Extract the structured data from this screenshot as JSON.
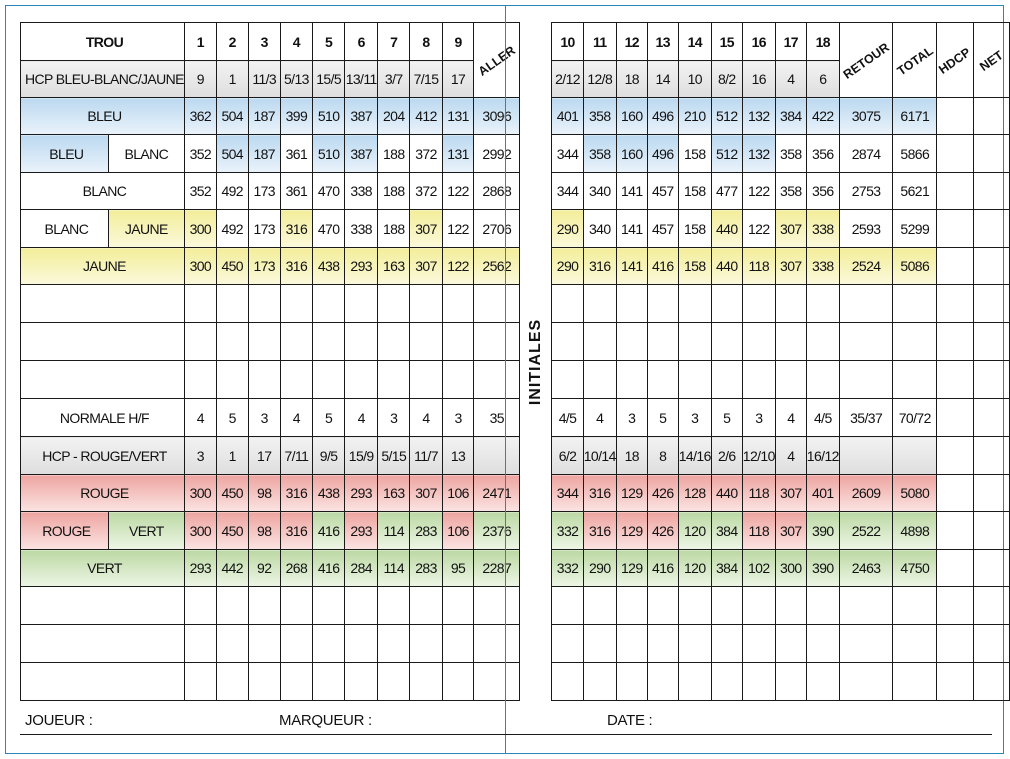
{
  "columns": {
    "trou_label": "TROU",
    "holes_front": [
      "1",
      "2",
      "3",
      "4",
      "5",
      "6",
      "7",
      "8",
      "9"
    ],
    "aller": "ALLER",
    "initiales": "INITIALES",
    "holes_back": [
      "10",
      "11",
      "12",
      "13",
      "14",
      "15",
      "16",
      "17",
      "18"
    ],
    "retour": "RETOUR",
    "total": "TOTAL",
    "hdcp": "HDCP",
    "net": "NET"
  },
  "rows": [
    {
      "label": "HCP BLEU-BLANC/JAUNE",
      "type": "hcp",
      "front": [
        "9",
        "1",
        "11/3",
        "5/13",
        "15/5",
        "13/11",
        "3/7",
        "7/15",
        "17"
      ],
      "aller": "",
      "back": [
        "2/12",
        "12/8",
        "18",
        "14",
        "10",
        "8/2",
        "16",
        "4",
        "6"
      ],
      "retour": "",
      "total": ""
    },
    {
      "label": "BLEU",
      "type": "tee",
      "label_color": "blue",
      "front": [
        "362",
        "504",
        "187",
        "399",
        "510",
        "387",
        "204",
        "412",
        "131"
      ],
      "front_colors": [
        "blue",
        "blue",
        "blue",
        "blue",
        "blue",
        "blue",
        "blue",
        "blue",
        "blue"
      ],
      "aller": "3096",
      "aller_color": "blue",
      "back": [
        "401",
        "358",
        "160",
        "496",
        "210",
        "512",
        "132",
        "384",
        "422"
      ],
      "back_colors": [
        "blue",
        "blue",
        "blue",
        "blue",
        "blue",
        "blue",
        "blue",
        "blue",
        "blue"
      ],
      "retour": "3075",
      "retour_color": "blue",
      "total": "6171",
      "total_color": "blue"
    },
    {
      "label": "BLEU",
      "sublabel": "BLANC",
      "type": "combo",
      "label_color": "blue",
      "sublabel_color": "",
      "front": [
        "352",
        "504",
        "187",
        "361",
        "510",
        "387",
        "188",
        "372",
        "131"
      ],
      "front_colors": [
        "",
        "blue",
        "blue",
        "",
        "blue",
        "blue",
        "",
        "",
        "blue"
      ],
      "aller": "2992",
      "aller_color": "",
      "back": [
        "344",
        "358",
        "160",
        "496",
        "158",
        "512",
        "132",
        "358",
        "356"
      ],
      "back_colors": [
        "",
        "blue",
        "blue",
        "blue",
        "",
        "blue",
        "blue",
        "",
        ""
      ],
      "retour": "2874",
      "retour_color": "",
      "total": "5866",
      "total_color": ""
    },
    {
      "label": "BLANC",
      "type": "tee",
      "label_color": "",
      "front": [
        "352",
        "492",
        "173",
        "361",
        "470",
        "338",
        "188",
        "372",
        "122"
      ],
      "front_colors": [
        "",
        "",
        "",
        "",
        "",
        "",
        "",
        "",
        ""
      ],
      "aller": "2868",
      "aller_color": "",
      "back": [
        "344",
        "340",
        "141",
        "457",
        "158",
        "477",
        "122",
        "358",
        "356"
      ],
      "back_colors": [
        "",
        "",
        "",
        "",
        "",
        "",
        "",
        "",
        ""
      ],
      "retour": "2753",
      "retour_color": "",
      "total": "5621",
      "total_color": ""
    },
    {
      "label": "BLANC",
      "sublabel": "JAUNE",
      "type": "combo",
      "label_color": "",
      "sublabel_color": "yellow",
      "front": [
        "300",
        "492",
        "173",
        "316",
        "470",
        "338",
        "188",
        "307",
        "122"
      ],
      "front_colors": [
        "yellow",
        "",
        "",
        "yellow",
        "",
        "",
        "",
        "yellow",
        ""
      ],
      "aller": "2706",
      "aller_color": "",
      "back": [
        "290",
        "340",
        "141",
        "457",
        "158",
        "440",
        "122",
        "307",
        "338"
      ],
      "back_colors": [
        "yellow",
        "",
        "",
        "",
        "",
        "yellow",
        "",
        "yellow",
        "yellow"
      ],
      "retour": "2593",
      "retour_color": "",
      "total": "5299",
      "total_color": ""
    },
    {
      "label": "JAUNE",
      "type": "tee",
      "label_color": "yellow",
      "front": [
        "300",
        "450",
        "173",
        "316",
        "438",
        "293",
        "163",
        "307",
        "122"
      ],
      "front_colors": [
        "yellow",
        "yellow",
        "yellow",
        "yellow",
        "yellow",
        "yellow",
        "yellow",
        "yellow",
        "yellow"
      ],
      "aller": "2562",
      "aller_color": "yellow",
      "back": [
        "290",
        "316",
        "141",
        "416",
        "158",
        "440",
        "118",
        "307",
        "338"
      ],
      "back_colors": [
        "yellow",
        "yellow",
        "yellow",
        "yellow",
        "yellow",
        "yellow",
        "yellow",
        "yellow",
        "yellow"
      ],
      "retour": "2524",
      "retour_color": "yellow",
      "total": "5086",
      "total_color": "yellow"
    },
    {
      "type": "blank"
    },
    {
      "type": "blank"
    },
    {
      "type": "blank"
    },
    {
      "label": "NORMALE H/F",
      "type": "par",
      "front": [
        "4",
        "5",
        "3",
        "4",
        "5",
        "4",
        "3",
        "4",
        "3"
      ],
      "aller": "35",
      "back": [
        "4/5",
        "4",
        "3",
        "5",
        "3",
        "5",
        "3",
        "4",
        "4/5"
      ],
      "retour": "35/37",
      "total": "70/72"
    },
    {
      "label": "HCP - ROUGE/VERT",
      "type": "hcp2",
      "front": [
        "3",
        "1",
        "17",
        "7/11",
        "9/5",
        "15/9",
        "5/15",
        "11/7",
        "13"
      ],
      "aller": "",
      "back": [
        "6/2",
        "10/14",
        "18",
        "8",
        "14/16",
        "2/6",
        "12/10",
        "4",
        "16/12"
      ],
      "retour": "",
      "total": ""
    },
    {
      "label": "ROUGE",
      "type": "tee",
      "label_color": "red",
      "front": [
        "300",
        "450",
        "98",
        "316",
        "438",
        "293",
        "163",
        "307",
        "106"
      ],
      "front_colors": [
        "red",
        "red",
        "red",
        "red",
        "red",
        "red",
        "red",
        "red",
        "red"
      ],
      "aller": "2471",
      "aller_color": "red",
      "back": [
        "344",
        "316",
        "129",
        "426",
        "128",
        "440",
        "118",
        "307",
        "401"
      ],
      "back_colors": [
        "red",
        "red",
        "red",
        "red",
        "red",
        "red",
        "red",
        "red",
        "red"
      ],
      "retour": "2609",
      "retour_color": "red",
      "total": "5080",
      "total_color": "red"
    },
    {
      "label": "ROUGE",
      "sublabel": "VERT",
      "type": "combo",
      "label_color": "red",
      "sublabel_color": "green",
      "front": [
        "300",
        "450",
        "98",
        "316",
        "416",
        "293",
        "114",
        "283",
        "106"
      ],
      "front_colors": [
        "red",
        "red",
        "red",
        "red",
        "green",
        "red",
        "green",
        "green",
        "red"
      ],
      "aller": "2376",
      "aller_color": "green",
      "back": [
        "332",
        "316",
        "129",
        "426",
        "120",
        "384",
        "118",
        "307",
        "390"
      ],
      "back_colors": [
        "green",
        "red",
        "red",
        "red",
        "green",
        "green",
        "red",
        "red",
        "green"
      ],
      "retour": "2522",
      "retour_color": "green",
      "total": "4898",
      "total_color": "green"
    },
    {
      "label": "VERT",
      "type": "tee",
      "label_color": "green",
      "front": [
        "293",
        "442",
        "92",
        "268",
        "416",
        "284",
        "114",
        "283",
        "95"
      ],
      "front_colors": [
        "green",
        "green",
        "green",
        "green",
        "green",
        "green",
        "green",
        "green",
        "green"
      ],
      "aller": "2287",
      "aller_color": "green",
      "back": [
        "332",
        "290",
        "129",
        "416",
        "120",
        "384",
        "102",
        "300",
        "390"
      ],
      "back_colors": [
        "green",
        "green",
        "green",
        "green",
        "green",
        "green",
        "green",
        "green",
        "green"
      ],
      "retour": "2463",
      "retour_color": "green",
      "total": "4750",
      "total_color": "green"
    },
    {
      "type": "blank"
    },
    {
      "type": "blank"
    },
    {
      "type": "blank"
    }
  ],
  "footer": {
    "joueur": "JOUEUR :",
    "marqueur": "MARQUEUR :",
    "date": "DATE :"
  }
}
